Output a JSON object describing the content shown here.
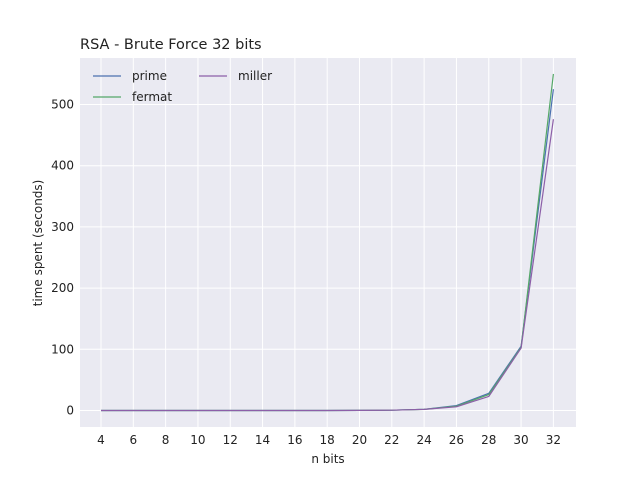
{
  "chart_data": {
    "type": "line",
    "title": "RSA - Brute Force 32 bits",
    "xlabel": "n bits",
    "ylabel": "time spent (seconds)",
    "x": [
      4,
      6,
      8,
      10,
      12,
      14,
      16,
      18,
      20,
      22,
      24,
      26,
      28,
      30,
      32
    ],
    "xticks": [
      "4",
      "6",
      "8",
      "10",
      "12",
      "14",
      "16",
      "18",
      "20",
      "22",
      "24",
      "26",
      "28",
      "30",
      "32"
    ],
    "xlim": [
      2.7,
      33.4
    ],
    "yticks": [
      "0",
      "100",
      "200",
      "300",
      "400",
      "500"
    ],
    "ylim": [
      -27,
      576
    ],
    "grid": true,
    "legend": {
      "placement": "top-left",
      "columns": 2
    },
    "series": [
      {
        "name": "prime",
        "color": "#4c72b0",
        "values": [
          0,
          0,
          0,
          0,
          0,
          0,
          0,
          0,
          0.1,
          0.5,
          2,
          8,
          28,
          105,
          525
        ]
      },
      {
        "name": "fermat",
        "color": "#55a868",
        "values": [
          0,
          0,
          0,
          0,
          0,
          0,
          0,
          0,
          0.1,
          0.4,
          1.8,
          7,
          26,
          103,
          550
        ]
      },
      {
        "name": "miller",
        "color": "#8c5fa8",
        "values": [
          0,
          0,
          0,
          0,
          0,
          0,
          0,
          0,
          0.1,
          0.4,
          1.7,
          6,
          23,
          102,
          476
        ]
      }
    ]
  }
}
